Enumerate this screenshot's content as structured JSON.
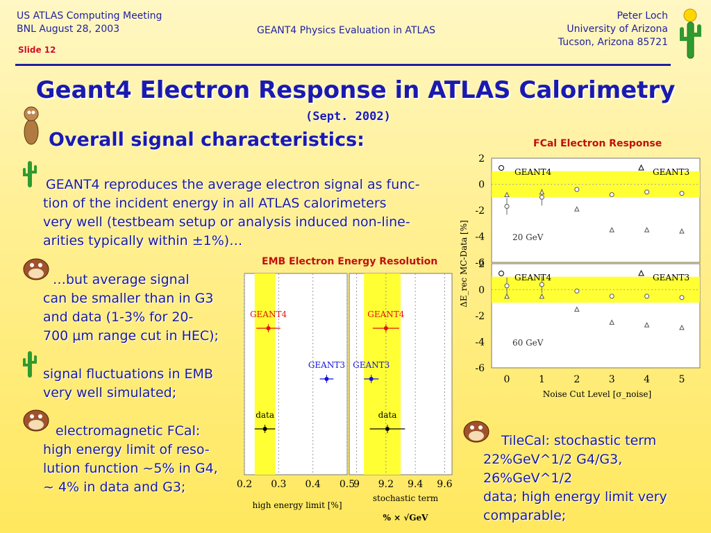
{
  "header": {
    "left_line1": "US ATLAS Computing Meeting",
    "left_line2": "BNL August 28, 2003",
    "slide_label": "Slide 12",
    "center": "GEANT4 Physics Evaluation in ATLAS",
    "right_line1": "Peter Loch",
    "right_line2": "University of Arizona",
    "right_line3": "Tucson, Arizona 85721"
  },
  "title": "Geant4 Electron Response in ATLAS Calorimetry",
  "subtitle": "(Sept. 2002)",
  "heading": "Overall signal characteristics:",
  "bullets": {
    "b1": [
      "GEANT4 reproduces the average electron signal as func-",
      "tion of the incident energy in all ATLAS calorimeters",
      "very well (testbeam setup or analysis induced non-line-",
      "arities typically within ±1%)…"
    ],
    "b2": [
      "…but average signal",
      "can be smaller than in G3",
      "and data (1-3% for 20-",
      "700 μm range cut in HEC);"
    ],
    "b3": [
      "signal fluctuations in EMB",
      "very well simulated;"
    ],
    "b4": [
      "electromagnetic FCal:",
      "high energy limit of reso-",
      "lution function ~5% in G4,",
      "~ 4% in data and G3;"
    ],
    "b5": [
      "TileCal: stochastic term",
      "22%GeV^1/2 G4/G3, 26%GeV^1/2",
      "data; high energy limit very",
      "comparable;"
    ]
  },
  "icon_names": [
    "cactus-icon",
    "coyote-icon",
    "taz-icon"
  ],
  "colors": {
    "accent": "#1a1ab0",
    "title_red": "#c01010",
    "band": "#ffff33"
  },
  "chart_data": [
    {
      "type": "scatter",
      "title": "EMB Electron Energy Resolution",
      "panels": [
        {
          "xlabel": "high energy limit [%]",
          "xticks": [
            "0.2",
            "0.3",
            "0.4",
            "0.5"
          ],
          "xlim": [
            0.2,
            0.5
          ],
          "band": [
            0.23,
            0.29
          ],
          "points": [
            {
              "name": "GEANT4",
              "x": 0.27,
              "err": 0.035,
              "color": "#e01010"
            },
            {
              "name": "GEANT3",
              "x": 0.44,
              "err": 0.02,
              "color": "#1010e0"
            },
            {
              "name": "data",
              "x": 0.26,
              "err": 0.03,
              "color": "#000000"
            }
          ]
        },
        {
          "xlabel": "stochastic term",
          "xlabel2": "% × √GeV",
          "xticks": [
            "9",
            "9.2",
            "9.4",
            "9.6"
          ],
          "xlim": [
            8.95,
            9.65
          ],
          "band": [
            9.05,
            9.3
          ],
          "points": [
            {
              "name": "GEANT4",
              "x": 9.2,
              "err": 0.09,
              "color": "#e01010"
            },
            {
              "name": "GEANT3",
              "x": 9.1,
              "err": 0.05,
              "color": "#1010e0"
            },
            {
              "name": "data",
              "x": 9.21,
              "err": 0.12,
              "color": "#000000"
            }
          ]
        }
      ]
    },
    {
      "type": "scatter",
      "title": "FCal Electron Response",
      "ylabel": "ΔE_rec MC-Data [%]",
      "xlabel": "Noise Cut Level [σ_noise]",
      "x": [
        0,
        1,
        2,
        3,
        4,
        5
      ],
      "xticks": [
        "0",
        "1",
        "2",
        "3",
        "4",
        "5"
      ],
      "ylim": [
        -6,
        2
      ],
      "yticks": [
        "2",
        "0",
        "-2",
        "-4",
        "-6"
      ],
      "band": [
        -1,
        1
      ],
      "panels": [
        {
          "label": "20 GeV",
          "series": [
            {
              "name": "GEANT4",
              "marker": "circle",
              "x": [
                0,
                1,
                2,
                3,
                4,
                5
              ],
              "values": [
                -1.7,
                -1.0,
                -0.4,
                -0.8,
                -0.6,
                -0.7
              ]
            },
            {
              "name": "GEANT3",
              "marker": "triangle",
              "x": [
                0,
                1,
                2,
                3,
                4,
                5
              ],
              "values": [
                -0.8,
                -0.6,
                -1.9,
                -3.5,
                -3.5,
                -3.6
              ]
            }
          ]
        },
        {
          "label": "60 GeV",
          "series": [
            {
              "name": "GEANT4",
              "marker": "circle",
              "x": [
                0,
                1,
                2,
                3,
                4,
                5
              ],
              "values": [
                0.3,
                0.4,
                -0.1,
                -0.5,
                -0.5,
                -0.6
              ]
            },
            {
              "name": "GEANT3",
              "marker": "triangle",
              "x": [
                0,
                1,
                2,
                3,
                4,
                5
              ],
              "values": [
                -0.5,
                -0.5,
                -1.5,
                -2.5,
                -2.7,
                -2.9
              ]
            }
          ]
        }
      ]
    }
  ]
}
